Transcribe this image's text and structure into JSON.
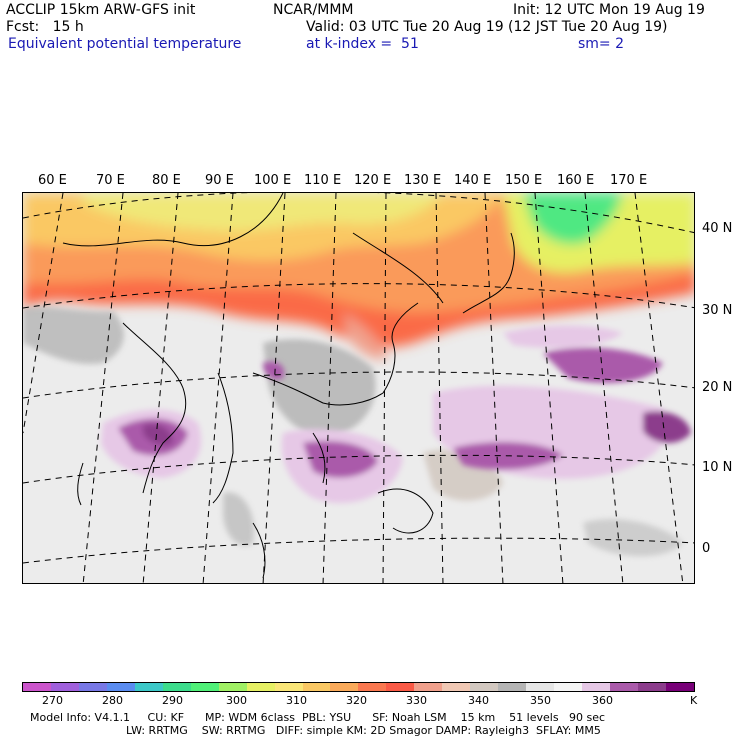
{
  "header": {
    "model_title": "ACCLIP 15km ARW-GFS init",
    "forecast": "Fcst:   15 h",
    "field_name": "Equivalent potential temperature",
    "center": "NCAR/MMM",
    "init": "Init: 12 UTC Mon 19 Aug 19",
    "valid": "Valid: 03 UTC Tue 20 Aug 19 (12 JST Tue 20 Aug 19)",
    "level": "at k-index =  51",
    "smoothing": "sm= 2"
  },
  "map": {
    "longitude_labels": [
      "60 E",
      "70 E",
      "80 E",
      "90 E",
      "100 E",
      "110 E",
      "120 E",
      "130 E",
      "140 E",
      "150 E",
      "160 E",
      "170 E"
    ],
    "latitude_labels": [
      "40 N",
      "30 N",
      "20 N",
      "10 N",
      "0"
    ]
  },
  "colorbar": {
    "colors": [
      "#cc55cc",
      "#a060dc",
      "#7878e6",
      "#5a8cf0",
      "#3cc8c8",
      "#3cdc8c",
      "#50f078",
      "#a0f064",
      "#e6f064",
      "#fae678",
      "#fac864",
      "#faaa5a",
      "#fa7850",
      "#fa5a46",
      "#f0a08c",
      "#f0c8b4",
      "#d2c8c0",
      "#b4b4b4",
      "#e6e6e6",
      "#f5f5f5",
      "#e6c8e6",
      "#aa5aaa",
      "#8c3c8c",
      "#780078"
    ],
    "tick_labels": [
      "270",
      "280",
      "290",
      "300",
      "310",
      "320",
      "330",
      "340",
      "350",
      "360"
    ],
    "unit": "K"
  },
  "footer": {
    "line1": "Model Info: V4.1.1     CU: KF      MP: WDM 6class  PBL: YSU      SF: Noah LSM    15 km    51 levels   90 sec",
    "line2": "LW: RRTMG    SW: RRTMG   DIFF: simple KM: 2D Smagor DAMP: Rayleigh3  SFLAY: MM5"
  }
}
